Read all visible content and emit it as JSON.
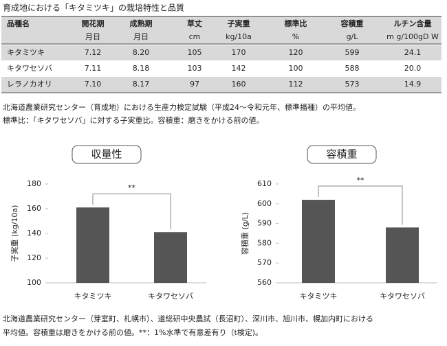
{
  "title": "育成地における「キタミツキ」の栽培特性と品質",
  "table": {
    "header": [
      {
        "name": "品種名"
      },
      {
        "name": "開花期",
        "unit": "月日"
      },
      {
        "name": "成熟期",
        "unit": "月日"
      },
      {
        "name": "草丈",
        "unit": "cm"
      },
      {
        "name": "子実重",
        "unit": "kg/10a"
      },
      {
        "name": "標準比",
        "unit": "%"
      },
      {
        "name": "容積重",
        "unit": "g/L"
      },
      {
        "name": "ルチン含量",
        "unit": "m g/100gD W"
      }
    ],
    "rows": [
      [
        "キタミツキ",
        "7.12",
        "8.20",
        "105",
        "170",
        "120",
        "599",
        "24.1"
      ],
      [
        "キタワセソバ",
        "7.11",
        "8.18",
        "103",
        "142",
        "100",
        "588",
        "20.0"
      ],
      [
        "レラノカオリ",
        "7.10",
        "8.17",
        "97",
        "160",
        "112",
        "573",
        "14.9"
      ]
    ]
  },
  "notes": [
    "北海道農業研究センター（育成地）における生産力検定試験（平成24～令和元年、標準播種）の平均値。",
    "標準比：「キタワセソバ」に対する子実重比。容積重：磨きをかける前の値。"
  ],
  "charts": [
    {
      "type": "bar",
      "title": "収量性",
      "ylabel": "子実重 (kg/10a)",
      "categories": [
        "キタミツキ",
        "キタワセソバ"
      ],
      "values": [
        161,
        141
      ],
      "color": "#555555",
      "ylim": [
        100,
        180
      ],
      "yticks": [
        100,
        120,
        140,
        160,
        180
      ],
      "significance": "**"
    },
    {
      "type": "bar",
      "title": "容積重",
      "ylabel": "容積重 (g/L)",
      "categories": [
        "キタミツキ",
        "キタワセソバ"
      ],
      "values": [
        602,
        588
      ],
      "color": "#555555",
      "ylim": [
        560,
        610
      ],
      "yticks": [
        560,
        570,
        580,
        590,
        600,
        610
      ],
      "significance": "**"
    }
  ],
  "footnote": [
    "北海道農業研究センター（芽室町、札幌市）、道総研中央農試（長沼町）、深川市、旭川市、幌加内町における",
    "平均値。容積重は磨きをかける前の値。**：1%水準で有意差有り（t検定)。"
  ]
}
